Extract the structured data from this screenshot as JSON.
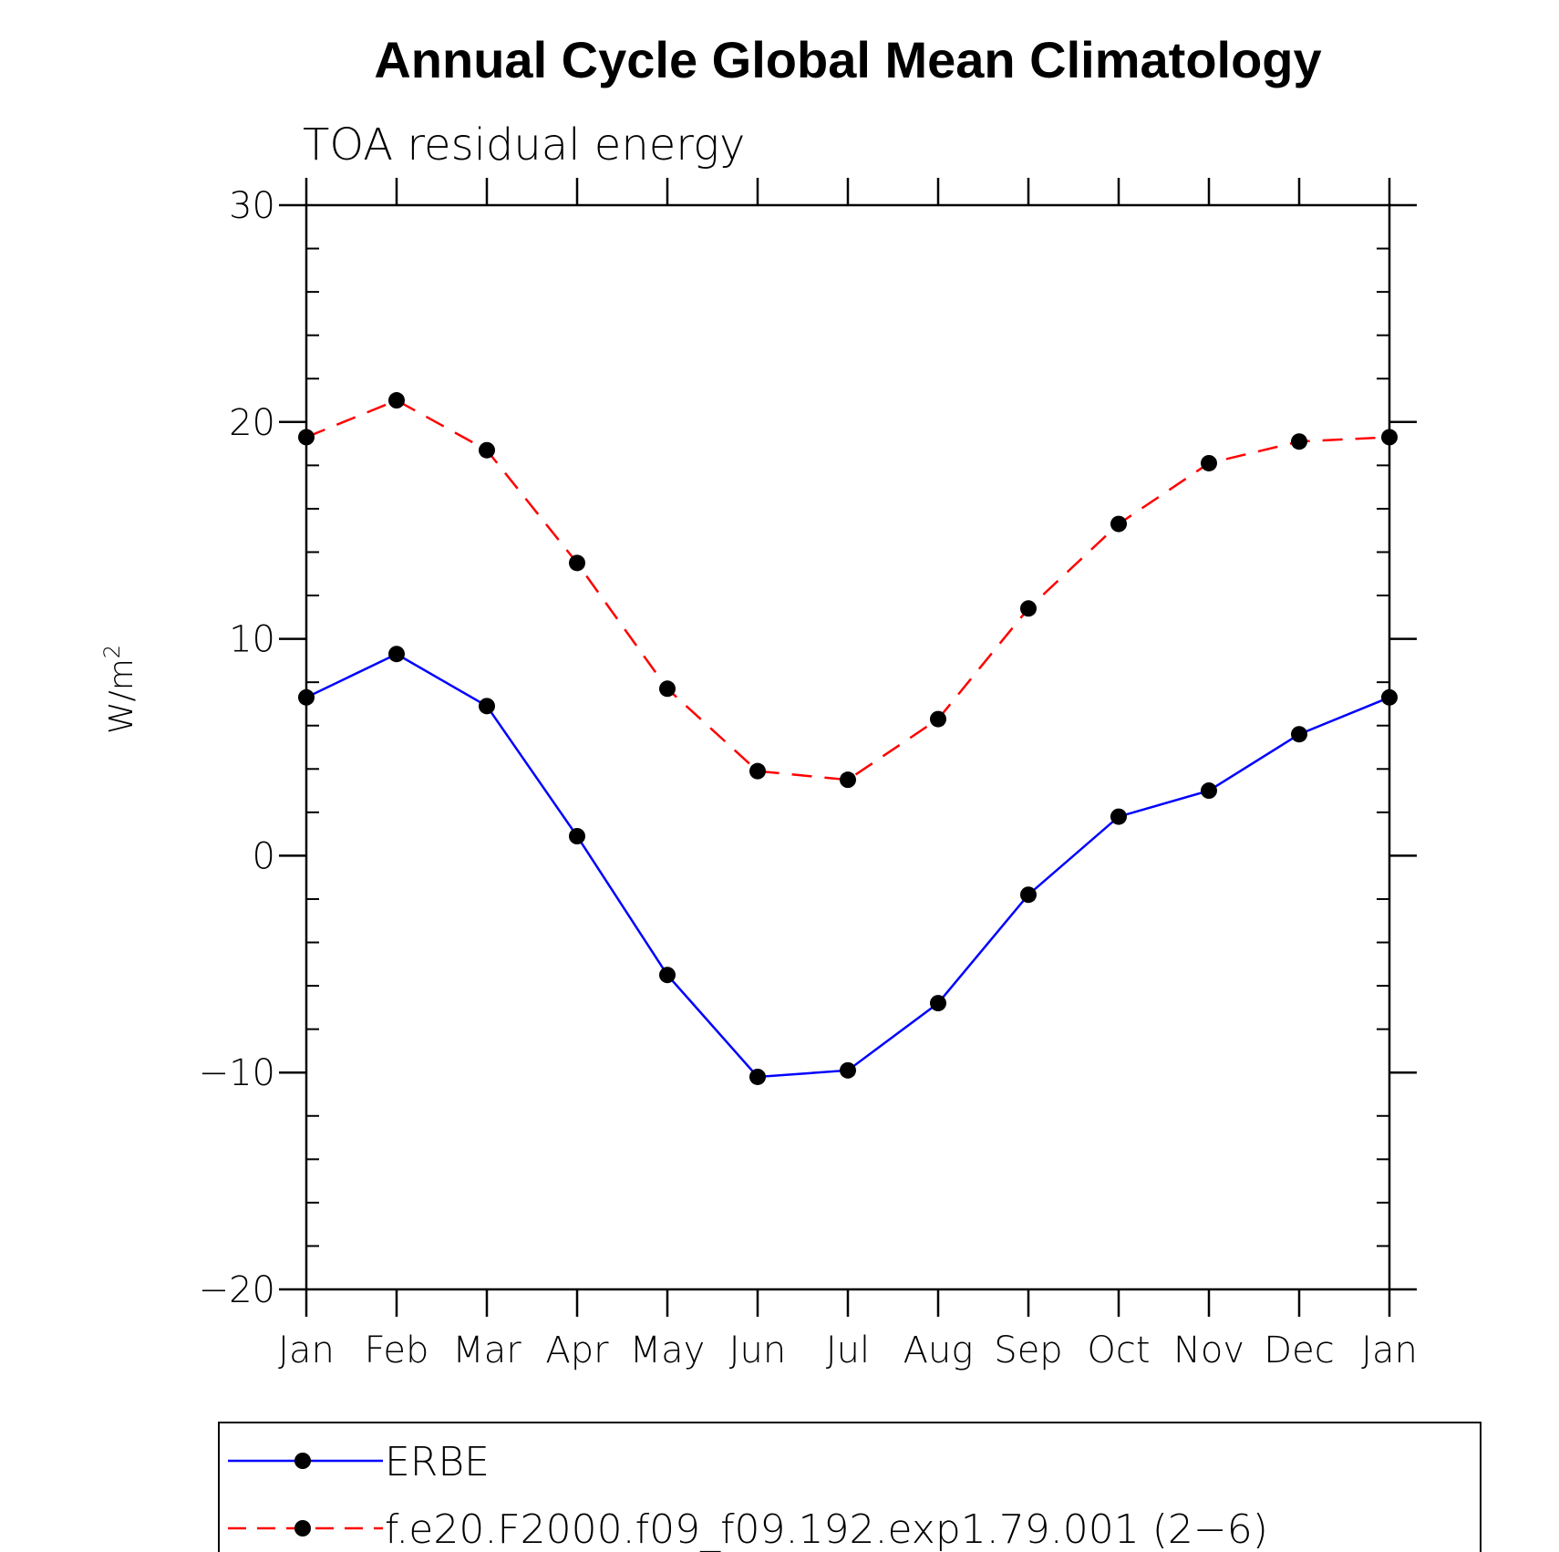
{
  "chart_data": {
    "type": "line",
    "title": "Annual Cycle Global Mean Climatology",
    "subtitle": "TOA residual energy",
    "xlabel": "",
    "ylabel": "W/m",
    "ylabel_superscript": "2",
    "categories": [
      "Jan",
      "Feb",
      "Mar",
      "Apr",
      "May",
      "Jun",
      "Jul",
      "Aug",
      "Sep",
      "Oct",
      "Nov",
      "Dec",
      "Jan"
    ],
    "ylim": [
      -20,
      30
    ],
    "yticks": [
      -20,
      -10,
      0,
      10,
      20,
      30
    ],
    "ytick_labels": [
      "−20",
      "−10",
      "0",
      "10",
      "20",
      "30"
    ],
    "grid": false,
    "legend_position": "bottom",
    "series": [
      {
        "name": "ERBE",
        "color": "#0000ff",
        "style": "solid",
        "marker": "dot",
        "values": [
          7.3,
          9.3,
          6.9,
          0.9,
          -5.5,
          -10.2,
          -9.9,
          -6.8,
          -1.8,
          1.8,
          3.0,
          5.6,
          7.3
        ]
      },
      {
        "name": "f.e20.F2000.f09_f09.192.exp1.79.001 (2−6)",
        "color": "#ff0000",
        "style": "dashed",
        "marker": "dot",
        "values": [
          19.3,
          21.0,
          18.7,
          13.5,
          7.7,
          3.9,
          3.5,
          6.3,
          11.4,
          15.3,
          18.1,
          19.1,
          19.3
        ]
      }
    ]
  }
}
